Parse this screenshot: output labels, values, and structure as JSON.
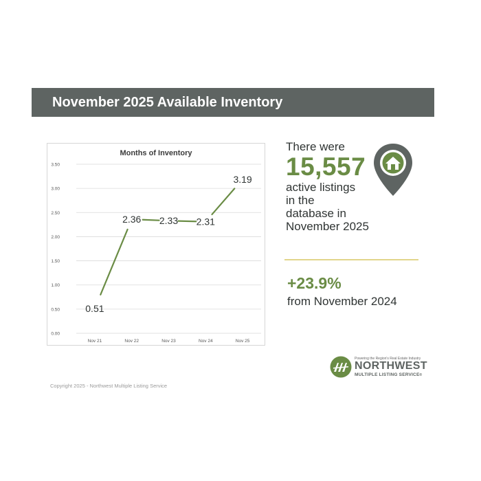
{
  "header": {
    "title": "November 2025 Available Inventory"
  },
  "chart_data": {
    "type": "line",
    "title": "Months of Inventory",
    "xlabel": "",
    "ylabel": "",
    "categories": [
      "Nov 21",
      "Nov 22",
      "Nov 23",
      "Nov 24",
      "Nov 25"
    ],
    "values": [
      0.51,
      2.36,
      2.33,
      2.31,
      3.19
    ],
    "data_labels": [
      "0.51",
      "2.36",
      "2.33",
      "2.31",
      "3.19"
    ],
    "ylim": [
      0,
      3.5
    ],
    "yticks": [
      "0.00",
      "0.50",
      "1.00",
      "1.50",
      "2.00",
      "2.50",
      "3.00",
      "3.50"
    ],
    "grid": true,
    "line_color": "#6a8c45"
  },
  "stats": {
    "intro": "There were",
    "count": "15,557",
    "line1": "active listings",
    "line2": "in the",
    "line3": "database in",
    "line4": "November 2025",
    "icon": "house-location-pin-icon"
  },
  "change": {
    "percent": "+23.9%",
    "label": "from November 2024"
  },
  "logo": {
    "tagline": "Powering the Region's Real Estate Industry",
    "name": "NORTHWEST",
    "subtitle": "MULTIPLE LISTING SERVICE",
    "mark": "®"
  },
  "footer": {
    "copyright": "Copyright 2025 - Northwest Multiple Listing Service"
  },
  "colors": {
    "accent": "#6a8c45",
    "header_bg": "#5e6462",
    "divider": "#e1d58a"
  }
}
